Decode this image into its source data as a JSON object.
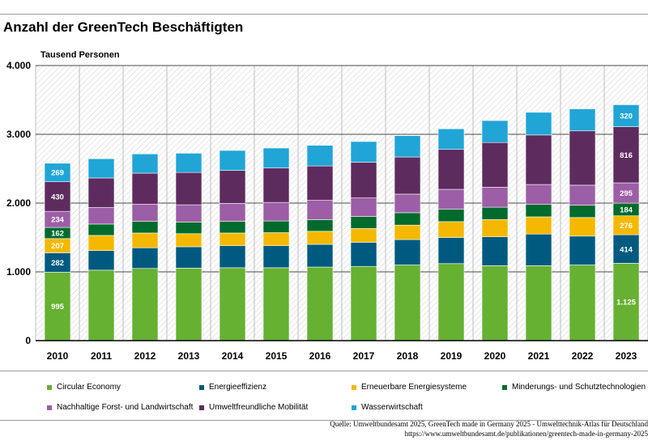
{
  "title": "Anzahl der GreenTech Beschäftigten",
  "source": {
    "line1": "Quelle: Umweltbundesamt 2025, GreenTech made in Germany 2025 - Umwelttechnik-Atlas für Deutschland",
    "line2": "https://www.umweltbundesamt.de/publikationen/greentech-made-in-germany-2025"
  },
  "chart_data": {
    "type": "bar",
    "stacked": true,
    "title": "Anzahl der GreenTech Beschäftigten",
    "ylabel": "Tausend Personen",
    "xlabel": "",
    "ylim": [
      0,
      4000
    ],
    "yticks": [
      0,
      1000,
      2000,
      3000,
      4000
    ],
    "ytick_labels": [
      "0",
      "1.000",
      "2.000",
      "3.000",
      "4.000"
    ],
    "categories": [
      "2010",
      "2011",
      "2012",
      "2013",
      "2014",
      "2015",
      "2016",
      "2017",
      "2018",
      "2019",
      "2020",
      "2021",
      "2022",
      "2023"
    ],
    "series": [
      {
        "name": "Circular Economy",
        "color": "#66b032",
        "values": [
          995,
          1025,
          1050,
          1055,
          1060,
          1060,
          1070,
          1080,
          1100,
          1120,
          1090,
          1090,
          1100,
          1125
        ]
      },
      {
        "name": "Energieeffizienz",
        "color": "#005a7f",
        "values": [
          282,
          285,
          300,
          310,
          320,
          320,
          330,
          350,
          370,
          380,
          420,
          460,
          420,
          414
        ]
      },
      {
        "name": "Erneuerbare Energiesysteme",
        "color": "#f5b800",
        "values": [
          207,
          220,
          215,
          190,
          185,
          190,
          190,
          200,
          210,
          230,
          250,
          250,
          270,
          276
        ]
      },
      {
        "name": "Minderungs- und Schutztechnologien",
        "color": "#006b2d",
        "values": [
          162,
          165,
          170,
          170,
          170,
          170,
          170,
          175,
          180,
          180,
          180,
          180,
          180,
          184
        ]
      },
      {
        "name": "Nachhaltige Forst- und Landwirtschaft",
        "color": "#9c5ea6",
        "values": [
          234,
          240,
          250,
          250,
          260,
          270,
          280,
          270,
          270,
          290,
          290,
          290,
          290,
          295
        ]
      },
      {
        "name": "Umweltfreundliche Mobilität",
        "color": "#5e2b5e",
        "values": [
          430,
          430,
          450,
          470,
          480,
          500,
          500,
          520,
          540,
          580,
          650,
          720,
          790,
          816
        ]
      },
      {
        "name": "Wasserwirtschaft",
        "color": "#20a5d6",
        "values": [
          269,
          280,
          280,
          280,
          290,
          290,
          300,
          300,
          310,
          300,
          320,
          330,
          320,
          320
        ]
      }
    ],
    "data_labels": [
      {
        "category": "2010",
        "series": "Circular Economy",
        "text": "995"
      },
      {
        "category": "2010",
        "series": "Energieeffizienz",
        "text": "282"
      },
      {
        "category": "2010",
        "series": "Erneuerbare Energiesysteme",
        "text": "207"
      },
      {
        "category": "2010",
        "series": "Minderungs- und Schutztechnologien",
        "text": "162"
      },
      {
        "category": "2010",
        "series": "Nachhaltige Forst- und Landwirtschaft",
        "text": "234"
      },
      {
        "category": "2010",
        "series": "Umweltfreundliche Mobilität",
        "text": "430"
      },
      {
        "category": "2010",
        "series": "Wasserwirtschaft",
        "text": "269"
      },
      {
        "category": "2023",
        "series": "Circular Economy",
        "text": "1.125"
      },
      {
        "category": "2023",
        "series": "Energieeffizienz",
        "text": "414"
      },
      {
        "category": "2023",
        "series": "Erneuerbare Energiesysteme",
        "text": "276"
      },
      {
        "category": "2023",
        "series": "Minderungs- und Schutztechnologien",
        "text": "184"
      },
      {
        "category": "2023",
        "series": "Nachhaltige Forst- und Landwirtschaft",
        "text": "295"
      },
      {
        "category": "2023",
        "series": "Umweltfreundliche Mobilität",
        "text": "816"
      },
      {
        "category": "2023",
        "series": "Wasserwirtschaft",
        "text": "320"
      }
    ],
    "legend": "bottom"
  }
}
